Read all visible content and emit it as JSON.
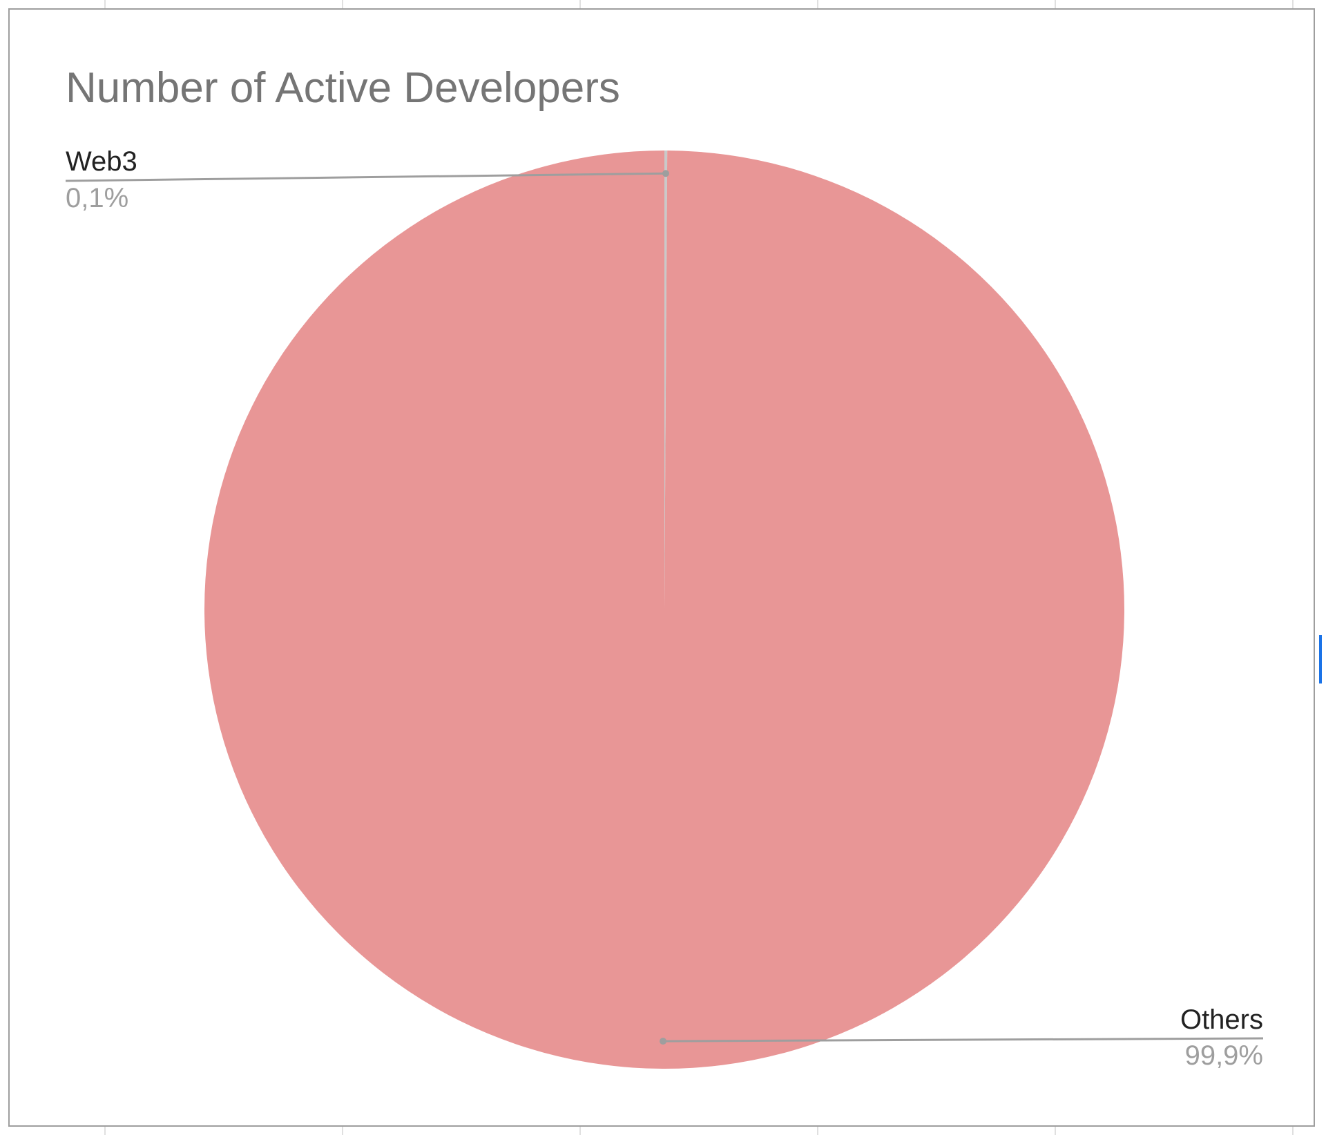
{
  "chart_data": {
    "type": "pie",
    "title": "Number of Active Developers",
    "slices": [
      {
        "label": "Web3",
        "value": 0.1,
        "value_label": "0,1%"
      },
      {
        "label": "Others",
        "value": 99.9,
        "value_label": "99,9%"
      }
    ],
    "start_angle_deg": 0,
    "legend": "none",
    "label_placement": "outside-with-leader-lines"
  },
  "colors": {
    "slice_fill": "#e89696",
    "web3_slice_fill": "#c9c9c9",
    "leader_line": "#9e9e9e",
    "card_border": "#9e9e9e",
    "grid_line": "#e0e0e0",
    "title_text": "#757575",
    "label_text": "#222222",
    "pct_text": "#9e9e9e"
  }
}
